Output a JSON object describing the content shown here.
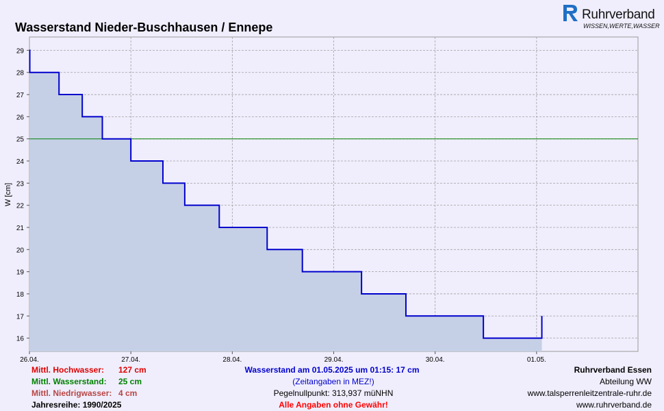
{
  "header": {
    "title": "Wasserstand Nieder-Buschhausen / Ennepe",
    "logo_name": "Ruhrverband",
    "logo_slogan": "WISSEN,WERTE,WASSER"
  },
  "chart_data": {
    "type": "line",
    "title": "Wasserstand Nieder-Buschhausen / Ennepe",
    "ylabel": "W [cm]",
    "xlabel": "",
    "xlim": [
      "26.04.2025 00:00",
      "02.05.2025 00:00"
    ],
    "ylim": [
      15.4,
      29.6
    ],
    "x_ticks": [
      "26.04.",
      "27.04.",
      "28.04.",
      "29.04.",
      "30.04.",
      "01.05."
    ],
    "y_ticks": [
      16,
      17,
      18,
      19,
      20,
      21,
      22,
      23,
      24,
      25,
      26,
      27,
      28,
      29
    ],
    "grid": true,
    "step": true,
    "fill": true,
    "colors": {
      "series": "#0000cc",
      "fill": "#c5d0e6",
      "mean": "#008000"
    },
    "series": [
      {
        "x": [
          "26.04.2025 00:00",
          "26.04.2025 00:05",
          "26.04.2025 07:00",
          "26.04.2025 12:30",
          "26.04.2025 17:15",
          "27.04.2025 00:00",
          "27.04.2025 07:35",
          "27.04.2025 12:45",
          "27.04.2025 20:55",
          "28.04.2025 08:15",
          "28.04.2025 16:35",
          "29.04.2025 06:35",
          "29.04.2025 17:05",
          "30.04.2025 11:25",
          "01.05.2025 00:00",
          "01.05.2025 01:15"
        ],
        "y": [
          29,
          28,
          27,
          26,
          25,
          24,
          23,
          22,
          21,
          20,
          19,
          18,
          17,
          16,
          16,
          17
        ]
      }
    ],
    "reference_lines": [
      {
        "label": "Mittl. Wasserstand",
        "y": 25
      }
    ]
  },
  "footer": {
    "mhw_label": "Mittl. Hochwasser:",
    "mhw_value": "127 cm",
    "mw_label": "Mittl. Wasserstand:",
    "mw_value": "25 cm",
    "mnw_label": "Mittl. Niedrigwasser:",
    "mnw_value": "4 cm",
    "jahresreihe": "Jahresreihe: 1990/2025",
    "current": "Wasserstand am 01.05.2025 um 01:15: 17 cm",
    "timezone": "(Zeitangaben in MEZ!)",
    "pegelnull": "Pegelnullpunkt:   313,937 müNHN",
    "disclaimer": "Alle Angaben ohne Gewähr!",
    "org": "Ruhrverband Essen",
    "dept": "Abteilung WW",
    "url1": "www.talsperrenleitzentrale-ruhr.de",
    "url2": "www.ruhrverband.de"
  },
  "colors": {
    "mhw": "#dd0000",
    "mw": "#008000",
    "mnw": "#b84545",
    "current": "#0000cc",
    "timezone": "#0000cc",
    "disclaimer": "#ff0000"
  }
}
